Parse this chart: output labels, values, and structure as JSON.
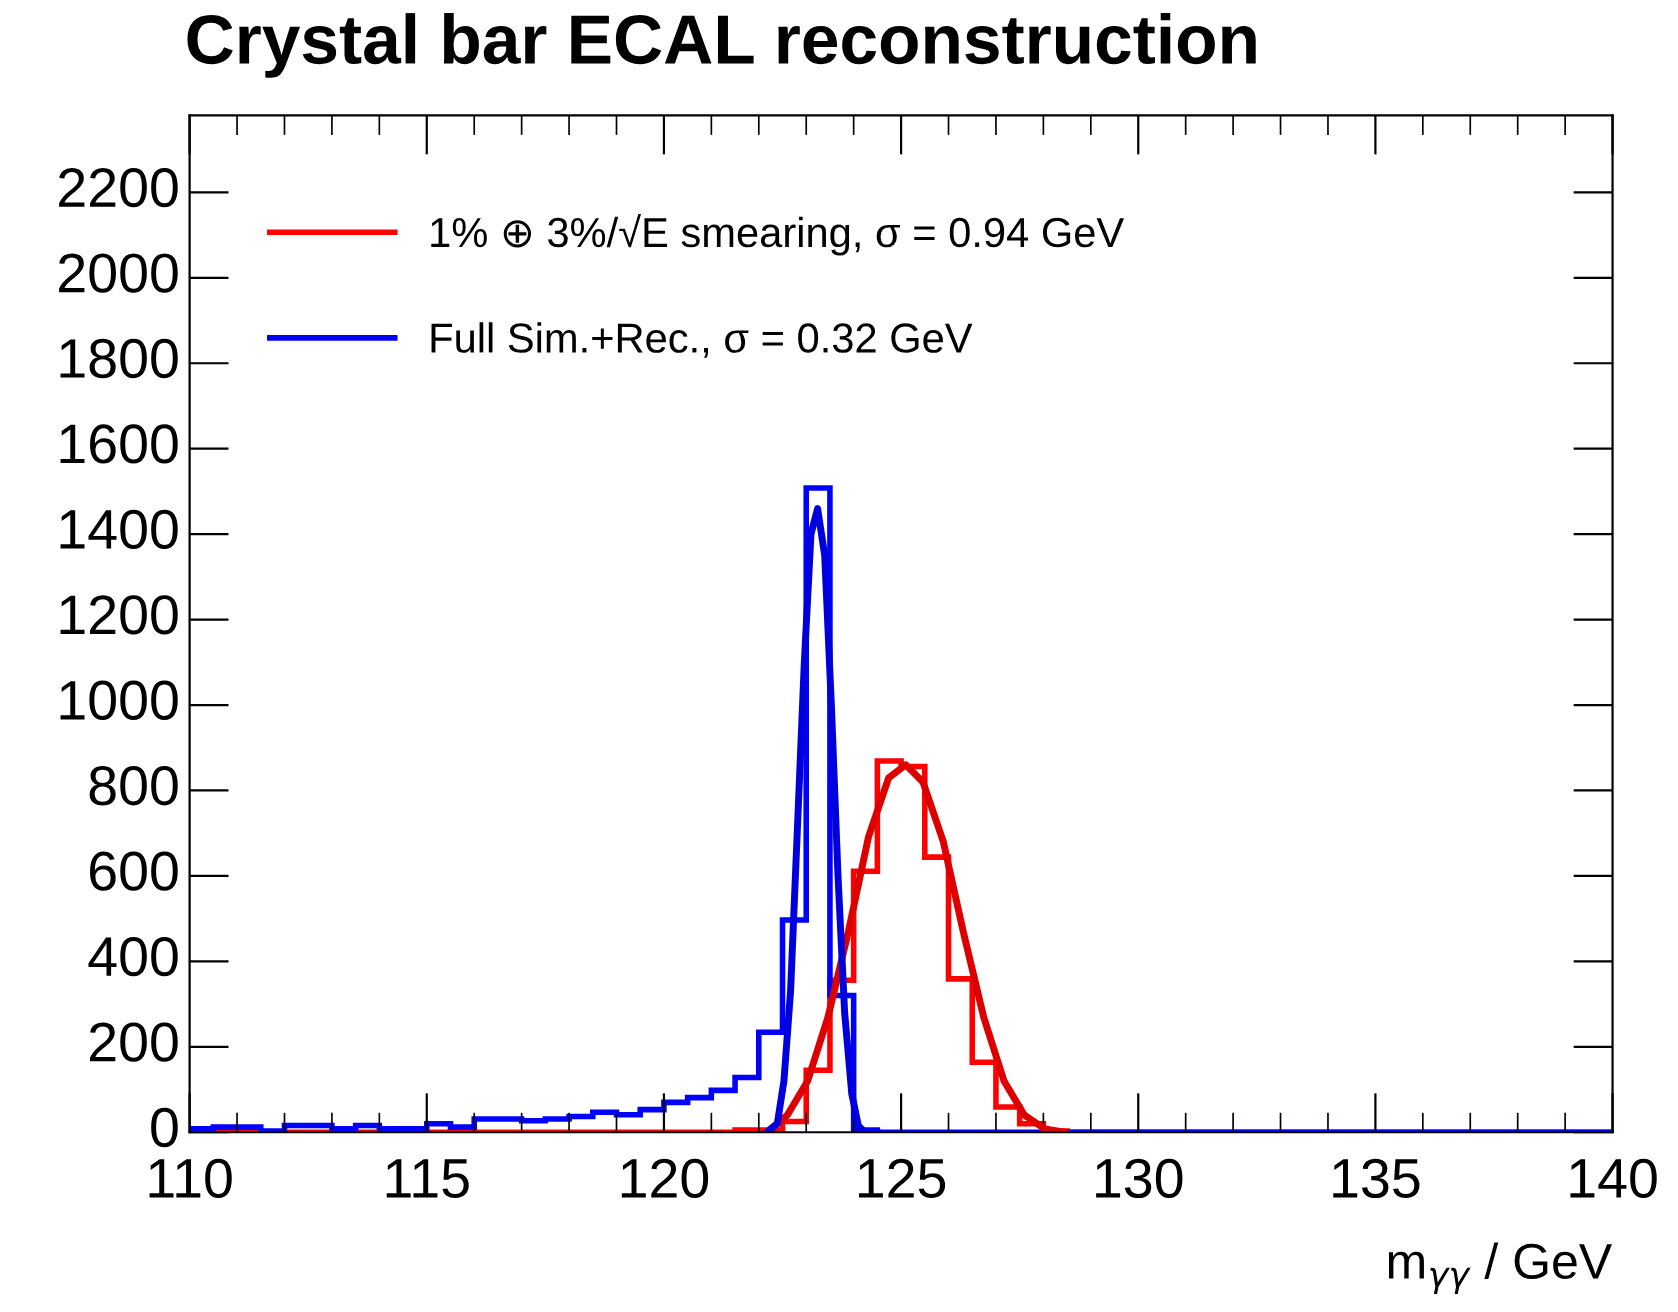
{
  "chart_data": {
    "type": "histogram",
    "title": "Crystal bar ECAL reconstruction",
    "xlabel": "m$_{γγ}$ / GeV",
    "bins": [
      110,
      110.5,
      111,
      111.5,
      112,
      112.5,
      113,
      113.5,
      114,
      114.5,
      115,
      115.5,
      116,
      116.5,
      117,
      117.5,
      118,
      118.5,
      119,
      119.5,
      120,
      120.5,
      121,
      121.5,
      122,
      122.5,
      123,
      123.5,
      124,
      124.5,
      125,
      125.5,
      126,
      126.5,
      127,
      127.5,
      128,
      128.5,
      129,
      129.5,
      130,
      130.5,
      131,
      131.5,
      132,
      132.5,
      133,
      133.5,
      134,
      134.5,
      135,
      135.5,
      136,
      136.5,
      137,
      137.5,
      138,
      138.5,
      139,
      139.5,
      140
    ],
    "series": [
      {
        "name": "1% ⊕ 3%/√E smearing, σ = 0.94 GeV",
        "color": "#ff0000",
        "values": [
          0,
          0,
          0,
          0,
          0,
          0,
          0,
          0,
          0,
          0,
          0,
          0,
          0,
          0,
          0,
          0,
          0,
          0,
          0,
          0,
          0,
          0,
          0,
          5,
          5,
          25,
          145,
          356,
          611,
          869,
          856,
          644,
          359,
          164,
          59,
          20,
          3,
          0,
          0,
          0,
          0,
          0,
          0,
          0,
          0,
          0,
          0,
          0,
          0,
          0,
          0,
          0,
          0,
          0,
          0,
          0,
          0,
          0,
          0,
          0
        ]
      },
      {
        "name": "Full Sim.+Rec., σ = 0.32 GeV",
        "color": "#0000ff",
        "values": [
          8,
          12,
          12,
          3,
          16,
          16,
          8,
          16,
          8,
          8,
          20,
          12,
          31,
          31,
          27,
          31,
          37,
          47,
          41,
          53,
          70,
          81,
          98,
          128,
          234,
          497,
          1508,
          320,
          5,
          0,
          0,
          0,
          0,
          0,
          0,
          0,
          0,
          0,
          0,
          0,
          0,
          0,
          0,
          0,
          0,
          0,
          0,
          0,
          0,
          0,
          0,
          0,
          0,
          0,
          0,
          0,
          0,
          0,
          0,
          0
        ]
      },
      {
        "type": "line",
        "color": "#dd0000",
        "x": [
          122.17,
          122.6,
          123.03,
          123.46,
          123.89,
          124.31,
          124.74,
          125.1,
          125.46,
          125.89,
          126.31,
          126.74,
          127.17,
          127.6,
          128.03,
          128.46
        ],
        "values": [
          0,
          40,
          120,
          270,
          470,
          690,
          830,
          860,
          820,
          680,
          470,
          270,
          120,
          40,
          8,
          0
        ]
      },
      {
        "type": "line",
        "color": "#0000dd",
        "x": [
          122.17,
          122.39,
          122.53,
          122.67,
          122.81,
          122.96,
          123.1,
          123.24,
          123.39,
          123.53,
          123.67,
          123.81,
          123.96,
          124.1,
          124.24
        ],
        "values": [
          0,
          20,
          120,
          330,
          700,
          1100,
          1400,
          1460,
          1350,
          1000,
          600,
          280,
          90,
          15,
          0
        ]
      }
    ],
    "xlim": [
      110,
      140
    ],
    "xticks": [
      110,
      115,
      120,
      125,
      130,
      135,
      140
    ],
    "ylim": [
      0,
      2380
    ],
    "yticks": [
      0,
      200,
      400,
      600,
      800,
      1000,
      1200,
      1400,
      1600,
      1800,
      2000,
      2200
    ],
    "grid": false,
    "legend": "top left"
  }
}
